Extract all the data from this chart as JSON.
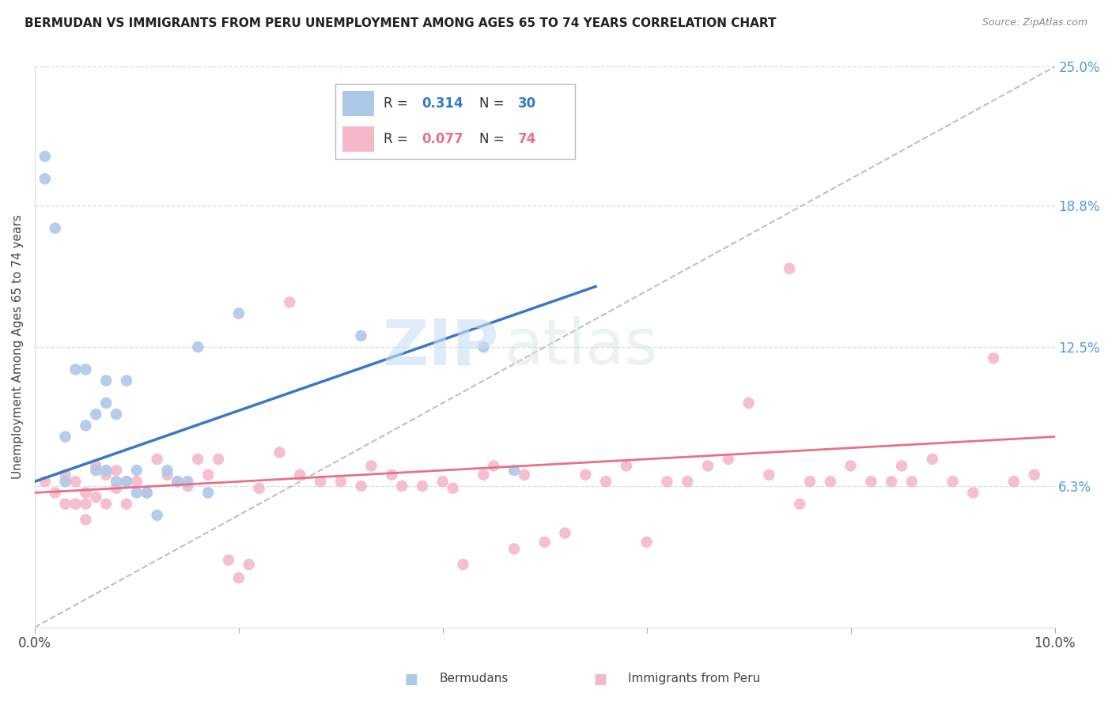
{
  "title": "BERMUDAN VS IMMIGRANTS FROM PERU UNEMPLOYMENT AMONG AGES 65 TO 74 YEARS CORRELATION CHART",
  "source": "Source: ZipAtlas.com",
  "ylabel": "Unemployment Among Ages 65 to 74 years",
  "xlim": [
    0,
    0.1
  ],
  "ylim": [
    0,
    0.25
  ],
  "yticks_right": [
    0.063,
    0.125,
    0.188,
    0.25
  ],
  "yticklabels_right": [
    "6.3%",
    "12.5%",
    "18.8%",
    "25.0%"
  ],
  "blue_color": "#adc8e8",
  "pink_color": "#f5b8c8",
  "blue_line_color": "#3878c8",
  "pink_line_color": "#e8708a",
  "gray_dash_color": "#c0c0c0",
  "watermark_zip": "ZIP",
  "watermark_atlas": "atlas",
  "blue_scatter_x": [
    0.001,
    0.001,
    0.002,
    0.003,
    0.003,
    0.004,
    0.005,
    0.005,
    0.006,
    0.006,
    0.007,
    0.007,
    0.007,
    0.008,
    0.008,
    0.009,
    0.009,
    0.01,
    0.01,
    0.011,
    0.012,
    0.013,
    0.014,
    0.015,
    0.016,
    0.017,
    0.02,
    0.032,
    0.044,
    0.047
  ],
  "blue_scatter_y": [
    0.21,
    0.2,
    0.178,
    0.085,
    0.065,
    0.115,
    0.115,
    0.09,
    0.095,
    0.07,
    0.11,
    0.1,
    0.07,
    0.095,
    0.065,
    0.11,
    0.065,
    0.07,
    0.06,
    0.06,
    0.05,
    0.07,
    0.065,
    0.065,
    0.125,
    0.06,
    0.14,
    0.13,
    0.125,
    0.07
  ],
  "pink_scatter_x": [
    0.001,
    0.002,
    0.003,
    0.003,
    0.004,
    0.004,
    0.005,
    0.005,
    0.005,
    0.006,
    0.006,
    0.007,
    0.007,
    0.008,
    0.008,
    0.009,
    0.009,
    0.01,
    0.011,
    0.012,
    0.013,
    0.014,
    0.015,
    0.016,
    0.017,
    0.018,
    0.019,
    0.02,
    0.021,
    0.022,
    0.024,
    0.025,
    0.026,
    0.028,
    0.03,
    0.032,
    0.033,
    0.035,
    0.036,
    0.038,
    0.04,
    0.041,
    0.042,
    0.044,
    0.045,
    0.047,
    0.048,
    0.05,
    0.052,
    0.054,
    0.056,
    0.058,
    0.06,
    0.062,
    0.064,
    0.066,
    0.068,
    0.07,
    0.072,
    0.074,
    0.076,
    0.078,
    0.08,
    0.082,
    0.084,
    0.086,
    0.088,
    0.09,
    0.092,
    0.094,
    0.075,
    0.085,
    0.096,
    0.098
  ],
  "pink_scatter_y": [
    0.065,
    0.06,
    0.068,
    0.055,
    0.065,
    0.055,
    0.06,
    0.055,
    0.048,
    0.072,
    0.058,
    0.068,
    0.055,
    0.07,
    0.062,
    0.065,
    0.055,
    0.065,
    0.06,
    0.075,
    0.068,
    0.065,
    0.063,
    0.075,
    0.068,
    0.075,
    0.03,
    0.022,
    0.028,
    0.062,
    0.078,
    0.145,
    0.068,
    0.065,
    0.065,
    0.063,
    0.072,
    0.068,
    0.063,
    0.063,
    0.065,
    0.062,
    0.028,
    0.068,
    0.072,
    0.035,
    0.068,
    0.038,
    0.042,
    0.068,
    0.065,
    0.072,
    0.038,
    0.065,
    0.065,
    0.072,
    0.075,
    0.1,
    0.068,
    0.16,
    0.065,
    0.065,
    0.072,
    0.065,
    0.065,
    0.065,
    0.075,
    0.065,
    0.06,
    0.12,
    0.055,
    0.072,
    0.065,
    0.068
  ],
  "blue_line_x0": 0.0,
  "blue_line_x1": 0.055,
  "blue_line_y0": 0.065,
  "blue_line_y1": 0.152,
  "pink_line_x0": 0.0,
  "pink_line_x1": 0.1,
  "pink_line_y0": 0.06,
  "pink_line_y1": 0.085
}
